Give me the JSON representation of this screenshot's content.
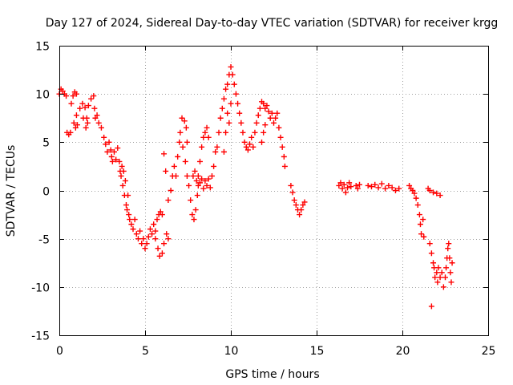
{
  "chart_data": {
    "type": "scatter",
    "title": "Day 127 of 2024, Sidereal Day-to-day VTEC variation (SDTVAR) for receiver krgg",
    "xlabel": "GPS time / hours",
    "ylabel": "SDTVAR / TECUs",
    "xlim": [
      0,
      25
    ],
    "ylim": [
      -15,
      15
    ],
    "x_ticks": [
      0,
      5,
      10,
      15,
      20,
      25
    ],
    "y_ticks": [
      -15,
      -10,
      -5,
      0,
      5,
      10,
      15
    ],
    "x_tick_labels": [
      "0",
      "5",
      "10",
      "15",
      "20",
      "25"
    ],
    "y_tick_labels": [
      "-15",
      "-10",
      "-5",
      "0",
      "5",
      "10",
      "15"
    ],
    "grid": true,
    "marker": "+",
    "color": "#ff0000",
    "series": [
      {
        "name": "SDTVAR",
        "points": [
          [
            0.0,
            10.0
          ],
          [
            0.1,
            10.5
          ],
          [
            0.2,
            10.3
          ],
          [
            0.3,
            10.0
          ],
          [
            0.4,
            9.8
          ],
          [
            0.45,
            6.0
          ],
          [
            0.55,
            5.8
          ],
          [
            0.65,
            6.0
          ],
          [
            0.7,
            9.0
          ],
          [
            0.8,
            9.8
          ],
          [
            0.9,
            10.2
          ],
          [
            1.0,
            10.0
          ],
          [
            0.85,
            7.0
          ],
          [
            0.95,
            6.5
          ],
          [
            1.0,
            7.8
          ],
          [
            1.05,
            6.8
          ],
          [
            1.2,
            8.5
          ],
          [
            1.35,
            9.0
          ],
          [
            1.5,
            8.6
          ],
          [
            1.6,
            7.5
          ],
          [
            1.7,
            8.8
          ],
          [
            1.85,
            9.5
          ],
          [
            2.0,
            9.8
          ],
          [
            2.05,
            8.5
          ],
          [
            1.4,
            7.5
          ],
          [
            1.55,
            6.5
          ],
          [
            1.65,
            7.0
          ],
          [
            2.1,
            7.5
          ],
          [
            2.2,
            7.8
          ],
          [
            2.3,
            7.0
          ],
          [
            2.45,
            6.5
          ],
          [
            2.6,
            5.5
          ],
          [
            2.7,
            4.8
          ],
          [
            2.8,
            4.0
          ],
          [
            2.9,
            5.0
          ],
          [
            3.0,
            4.2
          ],
          [
            3.05,
            3.5
          ],
          [
            3.1,
            3.0
          ],
          [
            3.2,
            4.0
          ],
          [
            3.3,
            3.2
          ],
          [
            3.4,
            4.4
          ],
          [
            3.5,
            3.0
          ],
          [
            3.55,
            2.0
          ],
          [
            3.6,
            1.5
          ],
          [
            3.65,
            2.5
          ],
          [
            3.7,
            0.5
          ],
          [
            3.75,
            2.0
          ],
          [
            3.8,
            -0.5
          ],
          [
            3.85,
            1.0
          ],
          [
            3.9,
            -1.5
          ],
          [
            3.95,
            -2.0
          ],
          [
            4.0,
            -0.5
          ],
          [
            4.05,
            -2.5
          ],
          [
            4.1,
            -3.0
          ],
          [
            4.2,
            -3.5
          ],
          [
            4.3,
            -4.0
          ],
          [
            4.4,
            -3.0
          ],
          [
            4.5,
            -4.5
          ],
          [
            4.6,
            -5.0
          ],
          [
            4.7,
            -4.2
          ],
          [
            4.8,
            -5.5
          ],
          [
            4.9,
            -5.0
          ],
          [
            5.0,
            -6.0
          ],
          [
            5.1,
            -5.5
          ],
          [
            5.2,
            -4.8
          ],
          [
            5.3,
            -4.0
          ],
          [
            5.4,
            -4.5
          ],
          [
            5.5,
            -3.5
          ],
          [
            5.6,
            -4.2
          ],
          [
            5.7,
            -3.0
          ],
          [
            5.8,
            -2.5
          ],
          [
            5.9,
            -2.2
          ],
          [
            6.0,
            -2.5
          ],
          [
            5.6,
            -5.0
          ],
          [
            5.75,
            -6.0
          ],
          [
            5.85,
            -6.8
          ],
          [
            6.0,
            -6.5
          ],
          [
            6.1,
            -5.5
          ],
          [
            6.25,
            -4.5
          ],
          [
            6.35,
            -5.0
          ],
          [
            6.1,
            3.8
          ],
          [
            6.2,
            2.0
          ],
          [
            6.35,
            -1.0
          ],
          [
            6.5,
            0.0
          ],
          [
            6.6,
            1.5
          ],
          [
            6.7,
            2.5
          ],
          [
            6.8,
            1.5
          ],
          [
            6.9,
            3.5
          ],
          [
            7.0,
            5.0
          ],
          [
            7.05,
            6.0
          ],
          [
            7.15,
            7.5
          ],
          [
            7.3,
            7.2
          ],
          [
            7.4,
            6.5
          ],
          [
            7.45,
            5.0
          ],
          [
            7.2,
            4.5
          ],
          [
            7.35,
            3.0
          ],
          [
            7.45,
            1.5
          ],
          [
            7.55,
            0.5
          ],
          [
            7.65,
            -1.0
          ],
          [
            7.75,
            -2.5
          ],
          [
            7.85,
            -3.0
          ],
          [
            7.95,
            -2.0
          ],
          [
            8.05,
            -0.5
          ],
          [
            8.1,
            1.5
          ],
          [
            8.2,
            3.0
          ],
          [
            8.3,
            4.5
          ],
          [
            8.4,
            5.5
          ],
          [
            8.5,
            6.0
          ],
          [
            8.6,
            6.5
          ],
          [
            8.7,
            5.5
          ],
          [
            7.8,
            1.5
          ],
          [
            7.9,
            2.0
          ],
          [
            8.0,
            1.0
          ],
          [
            8.1,
            0.5
          ],
          [
            8.2,
            0.8
          ],
          [
            8.3,
            1.2
          ],
          [
            8.4,
            0.2
          ],
          [
            8.5,
            1.0
          ],
          [
            8.6,
            0.5
          ],
          [
            8.7,
            1.2
          ],
          [
            8.8,
            0.3
          ],
          [
            8.9,
            1.5
          ],
          [
            9.0,
            2.5
          ],
          [
            9.1,
            4.0
          ],
          [
            9.2,
            4.5
          ],
          [
            9.3,
            6.0
          ],
          [
            9.4,
            7.5
          ],
          [
            9.5,
            8.5
          ],
          [
            9.6,
            9.5
          ],
          [
            9.7,
            10.5
          ],
          [
            9.8,
            11.0
          ],
          [
            9.9,
            12.0
          ],
          [
            10.0,
            12.8
          ],
          [
            10.1,
            12.0
          ],
          [
            10.2,
            11.0
          ],
          [
            10.3,
            10.0
          ],
          [
            10.4,
            9.0
          ],
          [
            10.5,
            8.0
          ],
          [
            10.6,
            7.0
          ],
          [
            10.7,
            6.0
          ],
          [
            10.8,
            5.0
          ],
          [
            10.9,
            4.5
          ],
          [
            11.0,
            4.2
          ],
          [
            11.1,
            4.8
          ],
          [
            11.2,
            5.5
          ],
          [
            11.3,
            4.5
          ],
          [
            11.4,
            6.0
          ],
          [
            9.6,
            4.0
          ],
          [
            9.7,
            6.0
          ],
          [
            9.8,
            8.0
          ],
          [
            9.9,
            7.0
          ],
          [
            10.0,
            9.0
          ],
          [
            11.5,
            7.0
          ],
          [
            11.6,
            7.8
          ],
          [
            11.7,
            8.5
          ],
          [
            11.8,
            9.2
          ],
          [
            11.9,
            9.0
          ],
          [
            12.0,
            8.5
          ],
          [
            12.1,
            8.8
          ],
          [
            12.2,
            8.2
          ],
          [
            12.3,
            7.5
          ],
          [
            12.4,
            8.0
          ],
          [
            12.5,
            7.0
          ],
          [
            12.6,
            7.5
          ],
          [
            12.7,
            8.0
          ],
          [
            12.8,
            6.5
          ],
          [
            12.9,
            5.5
          ],
          [
            13.0,
            4.5
          ],
          [
            13.1,
            3.5
          ],
          [
            13.15,
            2.5
          ],
          [
            11.8,
            5.0
          ],
          [
            11.9,
            6.0
          ],
          [
            12.0,
            6.8
          ],
          [
            13.5,
            0.5
          ],
          [
            13.6,
            -0.2
          ],
          [
            13.7,
            -1.0
          ],
          [
            13.8,
            -1.5
          ],
          [
            13.9,
            -2.0
          ],
          [
            14.0,
            -2.5
          ],
          [
            14.1,
            -2.0
          ],
          [
            14.2,
            -1.5
          ],
          [
            14.3,
            -1.2
          ],
          [
            16.3,
            0.5
          ],
          [
            16.4,
            0.8
          ],
          [
            16.5,
            0.2
          ],
          [
            16.6,
            0.6
          ],
          [
            16.7,
            -0.2
          ],
          [
            16.8,
            0.3
          ],
          [
            16.9,
            0.8
          ],
          [
            17.0,
            0.4
          ],
          [
            17.3,
            0.5
          ],
          [
            17.4,
            0.2
          ],
          [
            17.5,
            0.6
          ],
          [
            18.0,
            0.5
          ],
          [
            18.2,
            0.4
          ],
          [
            18.4,
            0.6
          ],
          [
            18.6,
            0.3
          ],
          [
            18.8,
            0.7
          ],
          [
            19.0,
            0.2
          ],
          [
            19.2,
            0.5
          ],
          [
            19.4,
            0.3
          ],
          [
            19.6,
            0.0
          ],
          [
            19.8,
            0.2
          ],
          [
            20.4,
            0.5
          ],
          [
            20.5,
            0.2
          ],
          [
            20.6,
            0.0
          ],
          [
            20.7,
            -0.3
          ],
          [
            20.8,
            -0.8
          ],
          [
            20.9,
            -1.5
          ],
          [
            21.0,
            -2.5
          ],
          [
            21.05,
            -3.5
          ],
          [
            21.1,
            -4.5
          ],
          [
            21.2,
            -3.0
          ],
          [
            21.25,
            -4.8
          ],
          [
            21.5,
            0.2
          ],
          [
            21.6,
            0.0
          ],
          [
            21.8,
            -0.2
          ],
          [
            22.0,
            -0.3
          ],
          [
            22.2,
            -0.5
          ],
          [
            21.6,
            -5.5
          ],
          [
            21.7,
            -6.5
          ],
          [
            21.8,
            -7.5
          ],
          [
            21.85,
            -8.0
          ],
          [
            21.9,
            -9.0
          ],
          [
            22.0,
            -8.5
          ],
          [
            22.05,
            -9.5
          ],
          [
            22.1,
            -8.0
          ],
          [
            22.2,
            -9.0
          ],
          [
            22.3,
            -8.5
          ],
          [
            22.4,
            -10.0
          ],
          [
            22.5,
            -9.0
          ],
          [
            22.55,
            -8.0
          ],
          [
            22.6,
            -7.0
          ],
          [
            22.65,
            -6.0
          ],
          [
            22.7,
            -5.5
          ],
          [
            22.75,
            -7.0
          ],
          [
            22.8,
            -8.5
          ],
          [
            22.85,
            -9.5
          ],
          [
            22.9,
            -7.5
          ],
          [
            21.7,
            -12.0
          ]
        ]
      }
    ]
  }
}
